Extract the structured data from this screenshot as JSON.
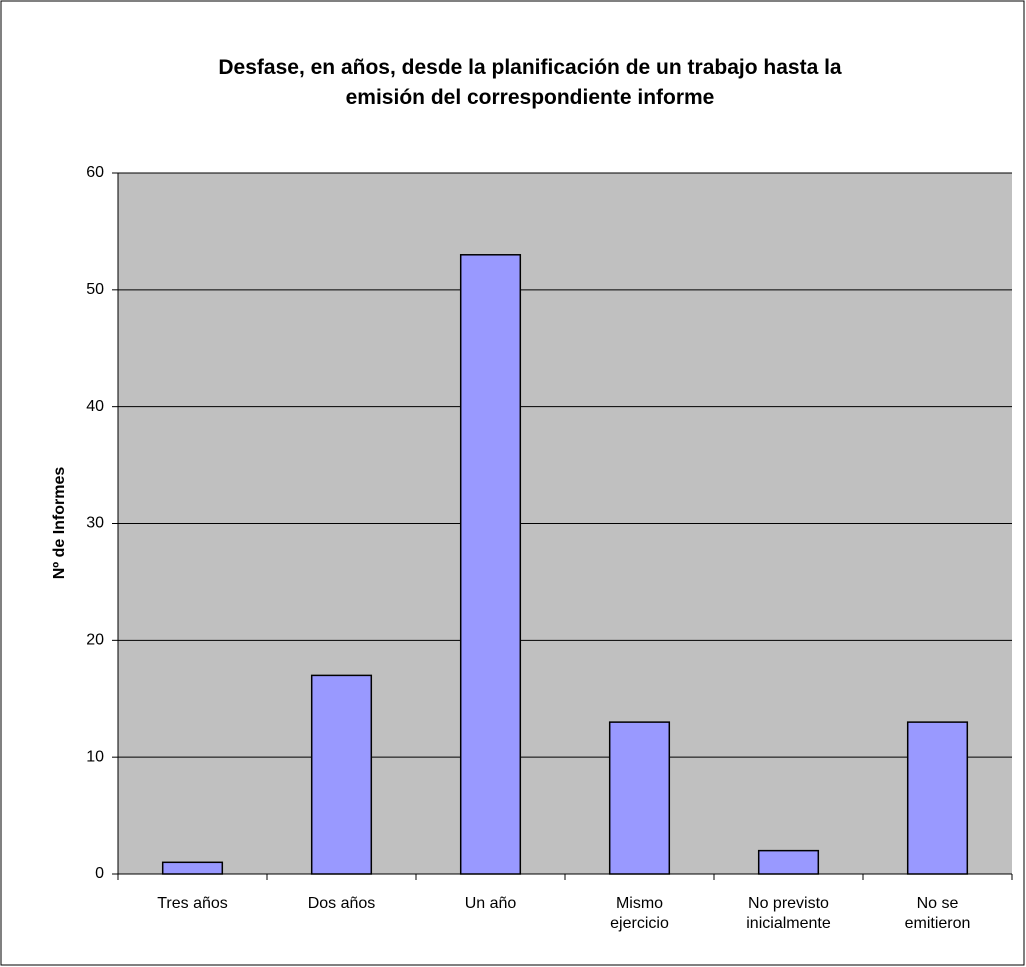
{
  "chart_data": {
    "type": "bar",
    "title": "Desfase, en años, desde la planificación de un trabajo hasta la\nemisión del correspondiente informe",
    "y_label": "Nº de Informes",
    "categories": [
      "Tres años",
      "Dos años",
      "Un año",
      "Mismo\nejercicio",
      "No previsto\ninicialmente",
      "No se\nemitieron"
    ],
    "values": [
      1,
      17,
      53,
      13,
      2,
      13
    ],
    "color": "#9999ff",
    "ylim": [
      0,
      60
    ],
    "yticks": [
      0,
      10,
      20,
      30,
      40,
      50,
      60
    ],
    "grid": true
  }
}
